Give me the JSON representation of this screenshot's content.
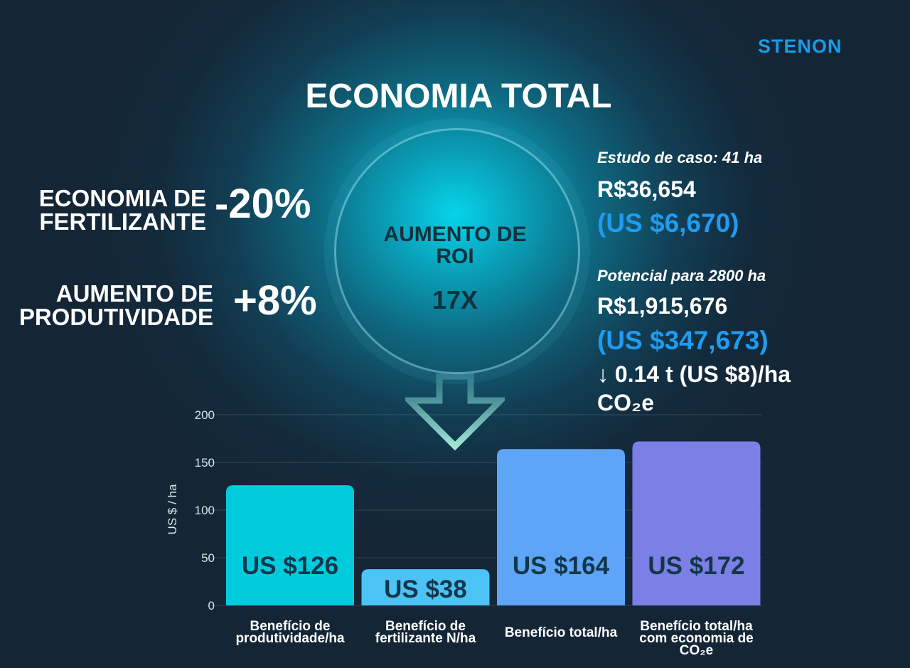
{
  "brand": "STENON",
  "title": "ECONOMIA TOTAL",
  "metrics": [
    {
      "label_line1": "ECONOMIA DE",
      "label_line2": "FERTILIZANTE",
      "value": "-20%"
    },
    {
      "label_line1": "AUMENTO DE",
      "label_line2": "PRODUTIVIDADE",
      "value": "+8%"
    }
  ],
  "roi": {
    "label_line1": "AUMENTO DE",
    "label_line2": "ROI",
    "value": "17X"
  },
  "case_study": {
    "heading": "Estudo de caso: 41 ha",
    "brl": "R$36,654",
    "usd": "(US $6,670)"
  },
  "potential": {
    "heading": "Potencial para 2800 ha",
    "brl": "R$1,915,676",
    "usd": "(US $347,673)",
    "co2_line1": "↓ 0.14 t (US $8)/ha",
    "co2_line2": "CO₂e"
  },
  "colors": {
    "brand": "#1a9be6",
    "usd_text": "#1f9cf0",
    "bars": [
      "#00cbdc",
      "#4cc3f5",
      "#5ea5f7",
      "#7c7fe6"
    ]
  },
  "chart_data": {
    "type": "bar",
    "ylabel": "US $ / ha",
    "ylim": [
      0,
      200
    ],
    "yticks": [
      0,
      50,
      100,
      150,
      200
    ],
    "grid": true,
    "categories": [
      [
        "Benefício de",
        "produtividade/ha"
      ],
      [
        "Benefício de",
        "fertilizante N/ha"
      ],
      [
        "Benefício total/ha"
      ],
      [
        "Benefício total/ha",
        "com economia de",
        "CO₂e"
      ]
    ],
    "values": [
      126,
      38,
      164,
      172
    ],
    "data_labels": [
      "US $126",
      "US $38",
      "US $164",
      "US $172"
    ]
  }
}
